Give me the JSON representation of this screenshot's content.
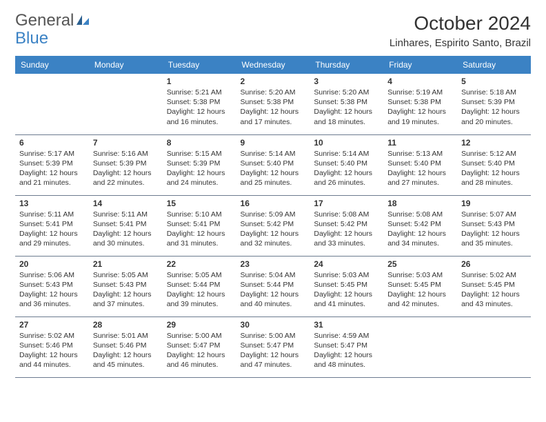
{
  "brand": {
    "part1": "General",
    "part2": "Blue"
  },
  "title": "October 2024",
  "location": "Linhares, Espirito Santo, Brazil",
  "weekdays": [
    "Sunday",
    "Monday",
    "Tuesday",
    "Wednesday",
    "Thursday",
    "Friday",
    "Saturday"
  ],
  "colors": {
    "header_bg": "#3b82c4",
    "header_text": "#ffffff",
    "border": "#6b7a8f",
    "text": "#333333",
    "brand_gray": "#555555",
    "brand_blue": "#3b82c4",
    "background": "#ffffff"
  },
  "typography": {
    "title_fontsize": 28,
    "location_fontsize": 15,
    "dayhead_fontsize": 12,
    "daynum_fontsize": 12,
    "info_fontsize": 10.5
  },
  "weeks": [
    [
      null,
      null,
      {
        "n": "1",
        "sr": "5:21 AM",
        "ss": "5:38 PM",
        "dlh": "12",
        "dlm": "16"
      },
      {
        "n": "2",
        "sr": "5:20 AM",
        "ss": "5:38 PM",
        "dlh": "12",
        "dlm": "17"
      },
      {
        "n": "3",
        "sr": "5:20 AM",
        "ss": "5:38 PM",
        "dlh": "12",
        "dlm": "18"
      },
      {
        "n": "4",
        "sr": "5:19 AM",
        "ss": "5:38 PM",
        "dlh": "12",
        "dlm": "19"
      },
      {
        "n": "5",
        "sr": "5:18 AM",
        "ss": "5:39 PM",
        "dlh": "12",
        "dlm": "20"
      }
    ],
    [
      {
        "n": "6",
        "sr": "5:17 AM",
        "ss": "5:39 PM",
        "dlh": "12",
        "dlm": "21"
      },
      {
        "n": "7",
        "sr": "5:16 AM",
        "ss": "5:39 PM",
        "dlh": "12",
        "dlm": "22"
      },
      {
        "n": "8",
        "sr": "5:15 AM",
        "ss": "5:39 PM",
        "dlh": "12",
        "dlm": "24"
      },
      {
        "n": "9",
        "sr": "5:14 AM",
        "ss": "5:40 PM",
        "dlh": "12",
        "dlm": "25"
      },
      {
        "n": "10",
        "sr": "5:14 AM",
        "ss": "5:40 PM",
        "dlh": "12",
        "dlm": "26"
      },
      {
        "n": "11",
        "sr": "5:13 AM",
        "ss": "5:40 PM",
        "dlh": "12",
        "dlm": "27"
      },
      {
        "n": "12",
        "sr": "5:12 AM",
        "ss": "5:40 PM",
        "dlh": "12",
        "dlm": "28"
      }
    ],
    [
      {
        "n": "13",
        "sr": "5:11 AM",
        "ss": "5:41 PM",
        "dlh": "12",
        "dlm": "29"
      },
      {
        "n": "14",
        "sr": "5:11 AM",
        "ss": "5:41 PM",
        "dlh": "12",
        "dlm": "30"
      },
      {
        "n": "15",
        "sr": "5:10 AM",
        "ss": "5:41 PM",
        "dlh": "12",
        "dlm": "31"
      },
      {
        "n": "16",
        "sr": "5:09 AM",
        "ss": "5:42 PM",
        "dlh": "12",
        "dlm": "32"
      },
      {
        "n": "17",
        "sr": "5:08 AM",
        "ss": "5:42 PM",
        "dlh": "12",
        "dlm": "33"
      },
      {
        "n": "18",
        "sr": "5:08 AM",
        "ss": "5:42 PM",
        "dlh": "12",
        "dlm": "34"
      },
      {
        "n": "19",
        "sr": "5:07 AM",
        "ss": "5:43 PM",
        "dlh": "12",
        "dlm": "35"
      }
    ],
    [
      {
        "n": "20",
        "sr": "5:06 AM",
        "ss": "5:43 PM",
        "dlh": "12",
        "dlm": "36"
      },
      {
        "n": "21",
        "sr": "5:05 AM",
        "ss": "5:43 PM",
        "dlh": "12",
        "dlm": "37"
      },
      {
        "n": "22",
        "sr": "5:05 AM",
        "ss": "5:44 PM",
        "dlh": "12",
        "dlm": "39"
      },
      {
        "n": "23",
        "sr": "5:04 AM",
        "ss": "5:44 PM",
        "dlh": "12",
        "dlm": "40"
      },
      {
        "n": "24",
        "sr": "5:03 AM",
        "ss": "5:45 PM",
        "dlh": "12",
        "dlm": "41"
      },
      {
        "n": "25",
        "sr": "5:03 AM",
        "ss": "5:45 PM",
        "dlh": "12",
        "dlm": "42"
      },
      {
        "n": "26",
        "sr": "5:02 AM",
        "ss": "5:45 PM",
        "dlh": "12",
        "dlm": "43"
      }
    ],
    [
      {
        "n": "27",
        "sr": "5:02 AM",
        "ss": "5:46 PM",
        "dlh": "12",
        "dlm": "44"
      },
      {
        "n": "28",
        "sr": "5:01 AM",
        "ss": "5:46 PM",
        "dlh": "12",
        "dlm": "45"
      },
      {
        "n": "29",
        "sr": "5:00 AM",
        "ss": "5:47 PM",
        "dlh": "12",
        "dlm": "46"
      },
      {
        "n": "30",
        "sr": "5:00 AM",
        "ss": "5:47 PM",
        "dlh": "12",
        "dlm": "47"
      },
      {
        "n": "31",
        "sr": "4:59 AM",
        "ss": "5:47 PM",
        "dlh": "12",
        "dlm": "48"
      },
      null,
      null
    ]
  ],
  "labels": {
    "sunrise": "Sunrise: ",
    "sunset": "Sunset: ",
    "daylight": "Daylight: ",
    "hours": " hours",
    "and": "and ",
    "minutes": " minutes."
  }
}
